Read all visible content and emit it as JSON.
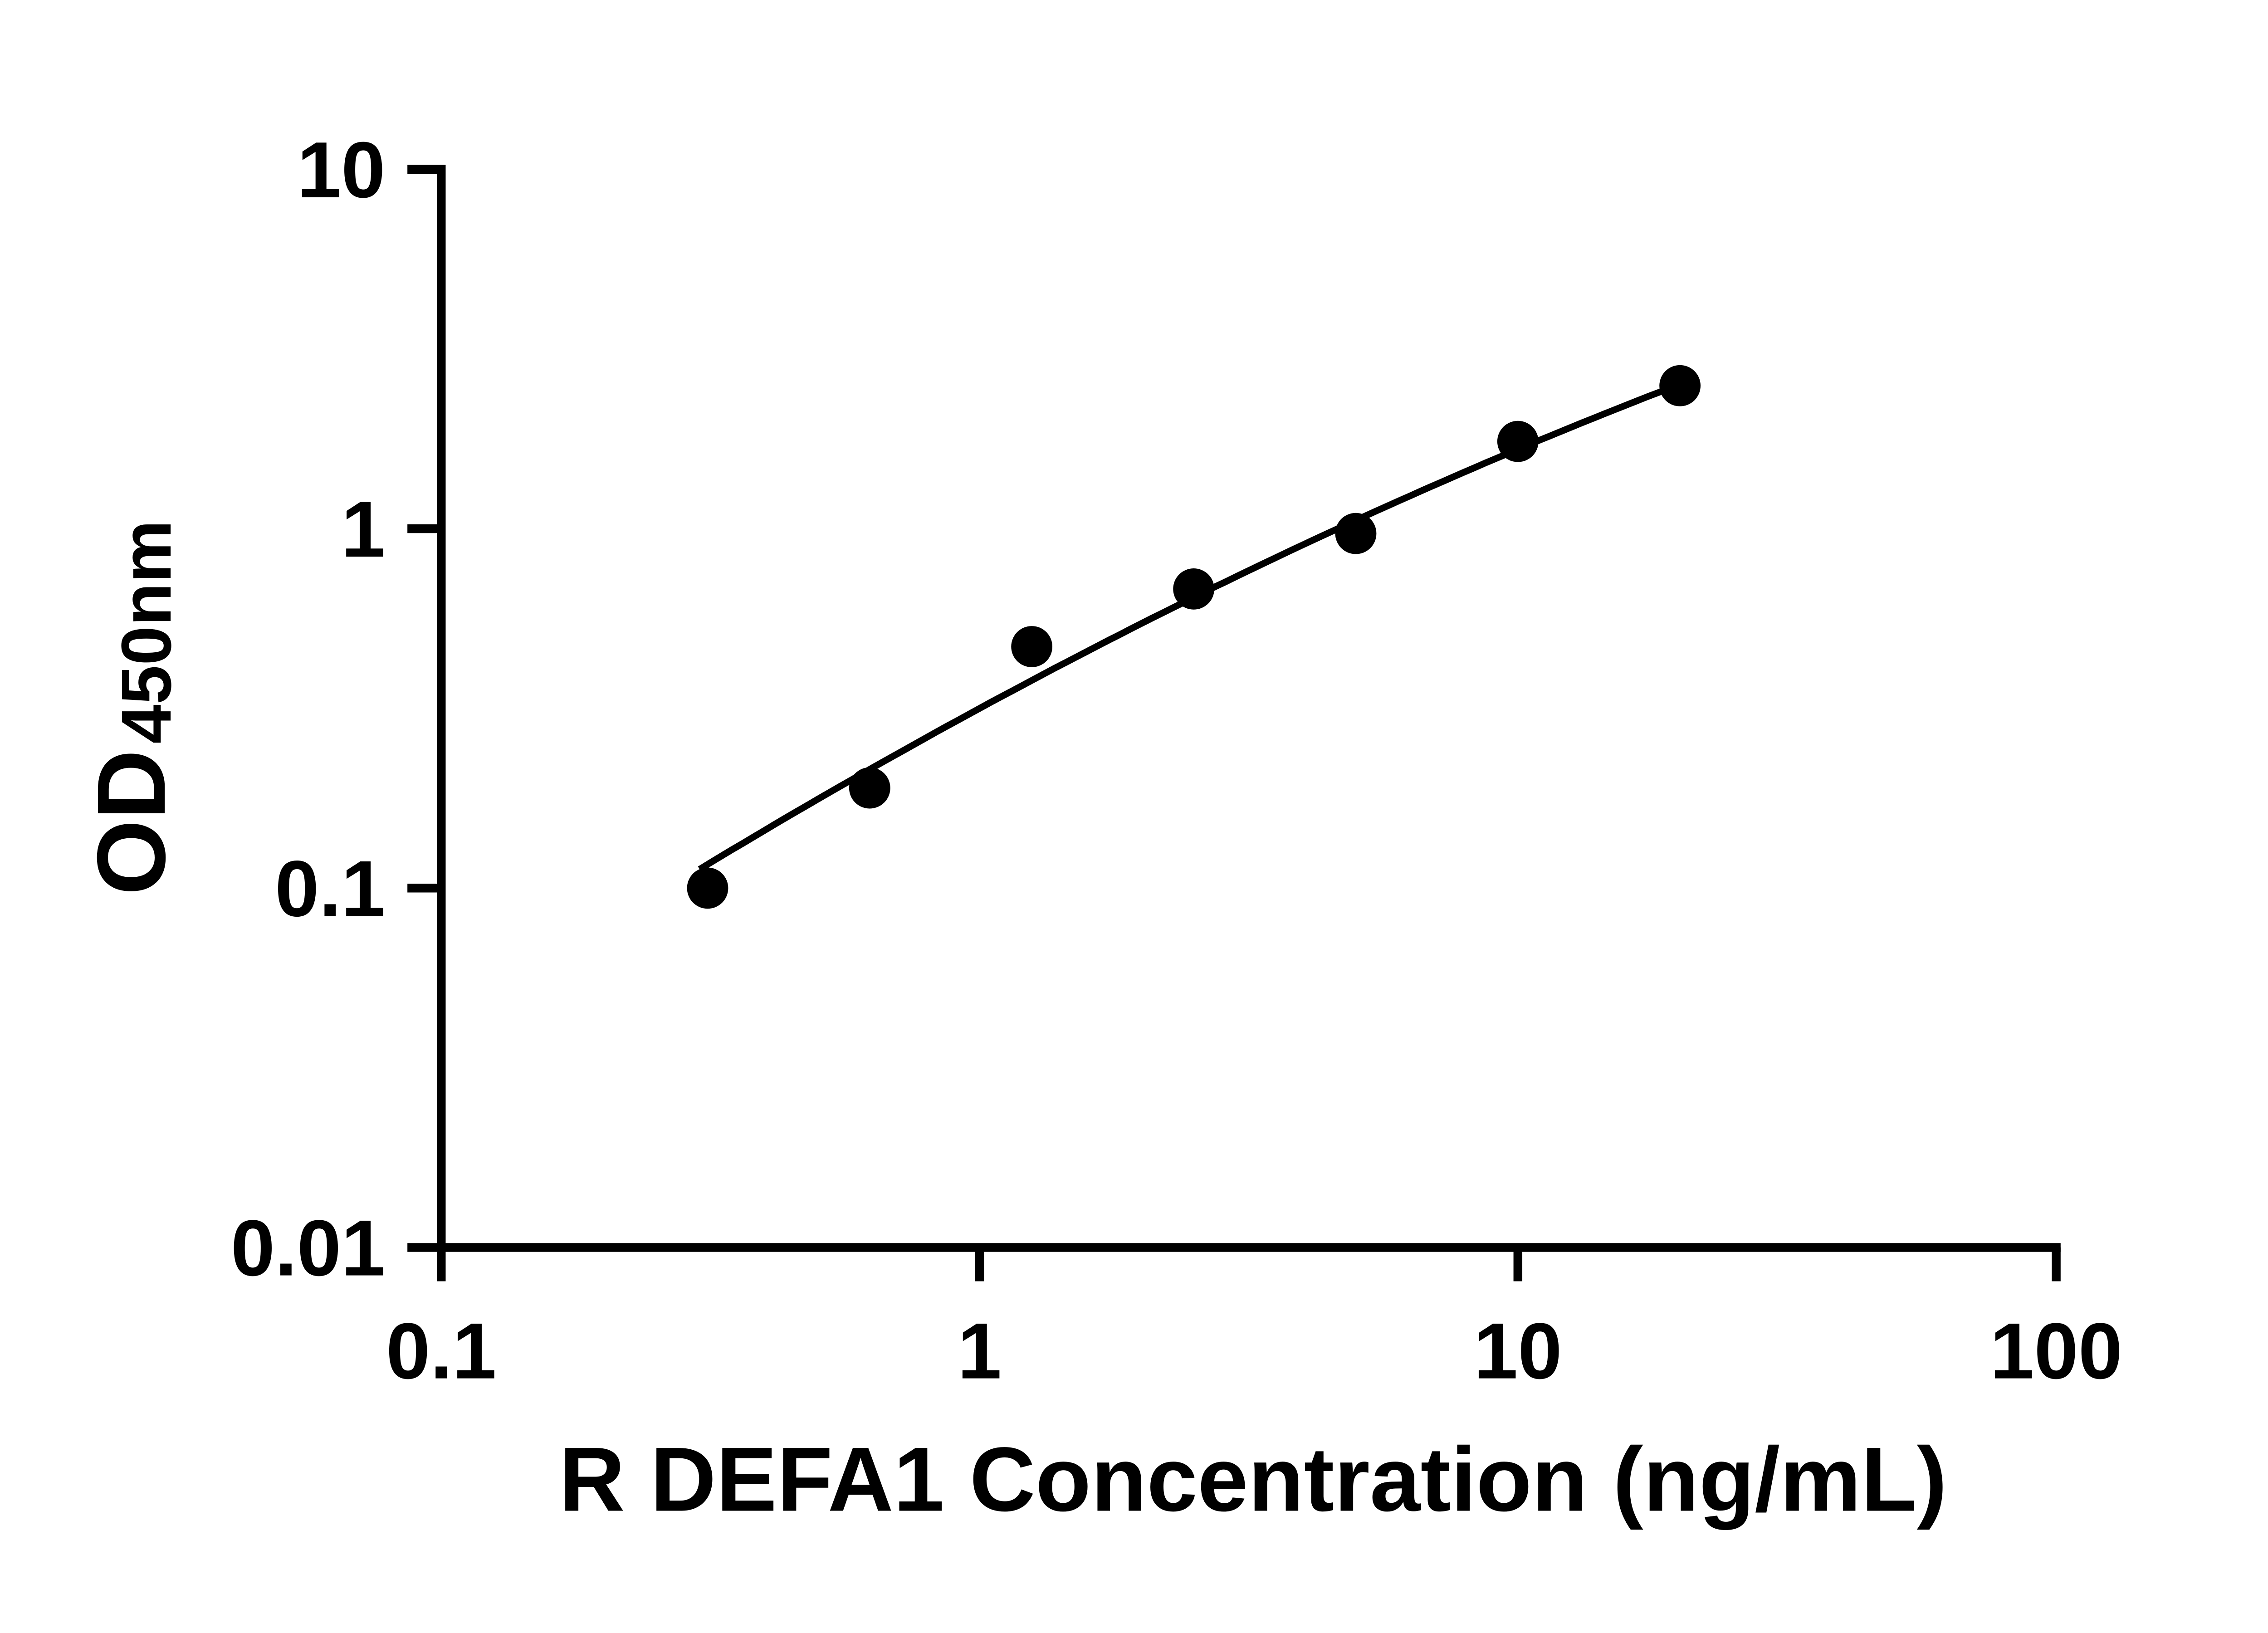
{
  "chart_data": {
    "type": "scatter",
    "title": "",
    "xlabel": "R DEFA1 Concentration (ng/mL)",
    "ylabel_main": "OD",
    "ylabel_sub": "450nm",
    "x_scale": "log",
    "y_scale": "log",
    "xlim": [
      0.1,
      100
    ],
    "ylim": [
      0.01,
      10
    ],
    "grid": false,
    "legend": false,
    "x_ticks": [
      {
        "value": 0.1,
        "label": "0.1"
      },
      {
        "value": 1,
        "label": "1"
      },
      {
        "value": 10,
        "label": "10"
      },
      {
        "value": 100,
        "label": "100"
      }
    ],
    "y_ticks": [
      {
        "value": 0.01,
        "label": "0.01"
      },
      {
        "value": 0.1,
        "label": "0.1"
      },
      {
        "value": 1,
        "label": "1"
      },
      {
        "value": 10,
        "label": "10"
      }
    ],
    "points": [
      {
        "x": 0.3125,
        "y": 0.1
      },
      {
        "x": 0.625,
        "y": 0.19
      },
      {
        "x": 1.25,
        "y": 0.47
      },
      {
        "x": 2.5,
        "y": 0.68
      },
      {
        "x": 5,
        "y": 0.97
      },
      {
        "x": 10,
        "y": 1.75
      },
      {
        "x": 20,
        "y": 2.5
      }
    ],
    "fit_curve": {
      "type": "quadratic_loglog",
      "a": -0.5,
      "b": 0.813,
      "c": -0.092,
      "u_range": [
        -0.52,
        1.301
      ]
    },
    "marker_color": "#000000",
    "line_color": "#000000"
  }
}
